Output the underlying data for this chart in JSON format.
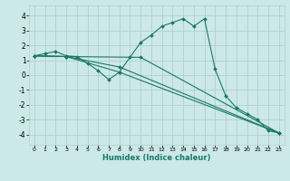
{
  "xlabel": "Humidex (Indice chaleur)",
  "xlim": [
    -0.5,
    23.5
  ],
  "ylim": [
    -4.7,
    4.7
  ],
  "yticks": [
    -4,
    -3,
    -2,
    -1,
    0,
    1,
    2,
    3,
    4
  ],
  "xticks": [
    0,
    1,
    2,
    3,
    4,
    5,
    6,
    7,
    8,
    9,
    10,
    11,
    12,
    13,
    14,
    15,
    16,
    17,
    18,
    19,
    20,
    21,
    22,
    23
  ],
  "bg_color": "#cce8e8",
  "grid_color": "#b0d0d0",
  "line_color": "#1a7868",
  "series": [
    {
      "x": [
        0,
        1,
        2,
        3,
        4,
        5,
        6,
        7,
        8,
        9,
        10,
        11,
        12,
        13,
        14,
        15,
        16,
        17,
        18,
        19,
        20,
        21,
        22,
        23
      ],
      "y": [
        1.3,
        1.45,
        1.6,
        1.3,
        1.25,
        0.8,
        0.3,
        -0.3,
        0.2,
        1.2,
        2.2,
        2.7,
        3.3,
        3.55,
        3.8,
        3.3,
        3.8,
        0.4,
        -1.4,
        -2.2,
        -2.6,
        -3.0,
        -3.75,
        -3.9
      ],
      "marker": true
    },
    {
      "x": [
        0,
        3,
        10,
        23
      ],
      "y": [
        1.3,
        1.25,
        1.2,
        -3.9
      ],
      "marker": true
    },
    {
      "x": [
        0,
        3,
        8,
        23
      ],
      "y": [
        1.3,
        1.25,
        0.55,
        -3.9
      ],
      "marker": true
    },
    {
      "x": [
        0,
        3,
        8,
        23
      ],
      "y": [
        1.3,
        1.25,
        0.2,
        -3.9
      ],
      "marker": true
    }
  ]
}
